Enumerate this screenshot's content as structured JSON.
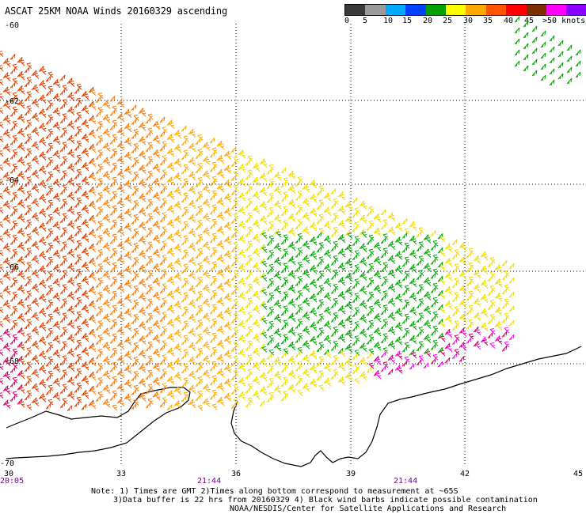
{
  "title": "ASCAT 25KM NOAA Winds 20160329 ascending",
  "colorbar": {
    "colors": [
      "#3a3a3a",
      "#9a9a9a",
      "#00a8ff",
      "#0040ff",
      "#00a000",
      "#ffff00",
      "#ffaa00",
      "#ff5500",
      "#ff0000",
      "#7a3000",
      "#ff00ff",
      "#8800ff",
      "#400080"
    ],
    "labels": [
      "0",
      "5",
      "10",
      "15",
      "20",
      "25",
      "30",
      "35",
      "40",
      "45",
      ">50 knots"
    ]
  },
  "map": {
    "lon_min": 30,
    "lon_max": 45,
    "lat_min": -70,
    "lat_max": -60,
    "lat_labels": [
      "-60",
      "-62",
      "-64",
      "-66",
      "-68",
      "-70"
    ],
    "lon_labels": [
      "30",
      "33",
      "36",
      "39",
      "42",
      "45"
    ],
    "grid": "dotted"
  },
  "time_labels": [
    "20:05",
    "21:44",
    "21:44"
  ],
  "footnote": {
    "line1": "Note: 1) Times are GMT 2)Times along bottom correspond to measurement at ~65S",
    "line2": "3)Data buffer is 22 hrs from 20160329 4) Black wind barbs indicate possible contamination",
    "line3": "NOAA/NESDIS/Center for Satellite Applications and Research"
  }
}
